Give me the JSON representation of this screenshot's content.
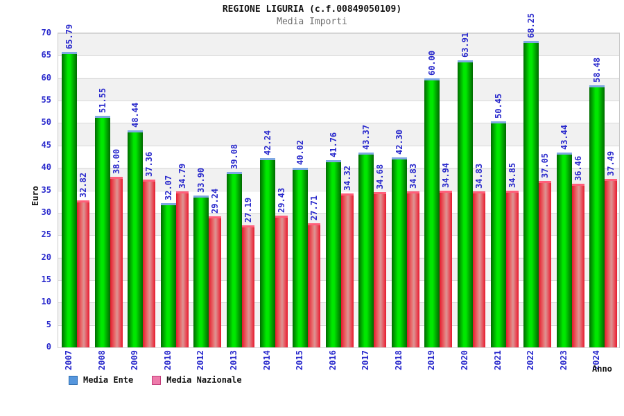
{
  "header": {
    "title": "REGIONE LIGURIA (c.f.00849050109)",
    "subtitle": "Media Importi"
  },
  "chart_data": {
    "type": "bar",
    "title": "REGIONE LIGURIA (c.f.00849050109)",
    "subtitle": "Media Importi",
    "xlabel": "Anno",
    "ylabel": "Euro",
    "ylim": [
      0,
      70
    ],
    "ytick_step": 5,
    "grid": "horizontal-bands",
    "legend_position": "bottom-left",
    "value_label_decimals": 2,
    "categories": [
      "2007",
      "2008",
      "2009",
      "2010",
      "2012",
      "2013",
      "2014",
      "2015",
      "2016",
      "2017",
      "2018",
      "2019",
      "2020",
      "2021",
      "2022",
      "2023",
      "2024"
    ],
    "series": [
      {
        "name": "Media Ente",
        "values": [
          65.79,
          51.55,
          48.44,
          32.07,
          33.9,
          39.08,
          42.24,
          40.02,
          41.76,
          43.37,
          42.3,
          60.0,
          63.91,
          50.45,
          68.25,
          43.44,
          58.48
        ]
      },
      {
        "name": "Media Nazionale",
        "values": [
          32.82,
          38.0,
          37.36,
          34.79,
          29.24,
          27.19,
          29.43,
          27.71,
          34.32,
          34.68,
          34.83,
          34.94,
          34.83,
          34.85,
          37.05,
          36.46,
          37.49
        ]
      }
    ]
  },
  "colors": {
    "label_blue": "#2929cc",
    "title_black": "#111111",
    "subtitle_gray": "#6e6e6e",
    "stripe_gray": "#f1f1f1",
    "gridline_gray": "#d8d8d8",
    "plot_border": "#c9c9c9",
    "bar_ente_edge": "#006a00",
    "bar_ente_bright": "#00e800",
    "bar_ente_cap": "#7fa8e2",
    "bar_naz_edge": "#e51a2e",
    "bar_naz_mid": "#dd9494",
    "bar_naz_cap": "#ff5f7a",
    "legend_ente_fill": "#5596dd",
    "legend_ente_border": "#2a6bb0",
    "legend_naz_fill": "#ee7bab",
    "legend_naz_border": "#c23a78"
  }
}
